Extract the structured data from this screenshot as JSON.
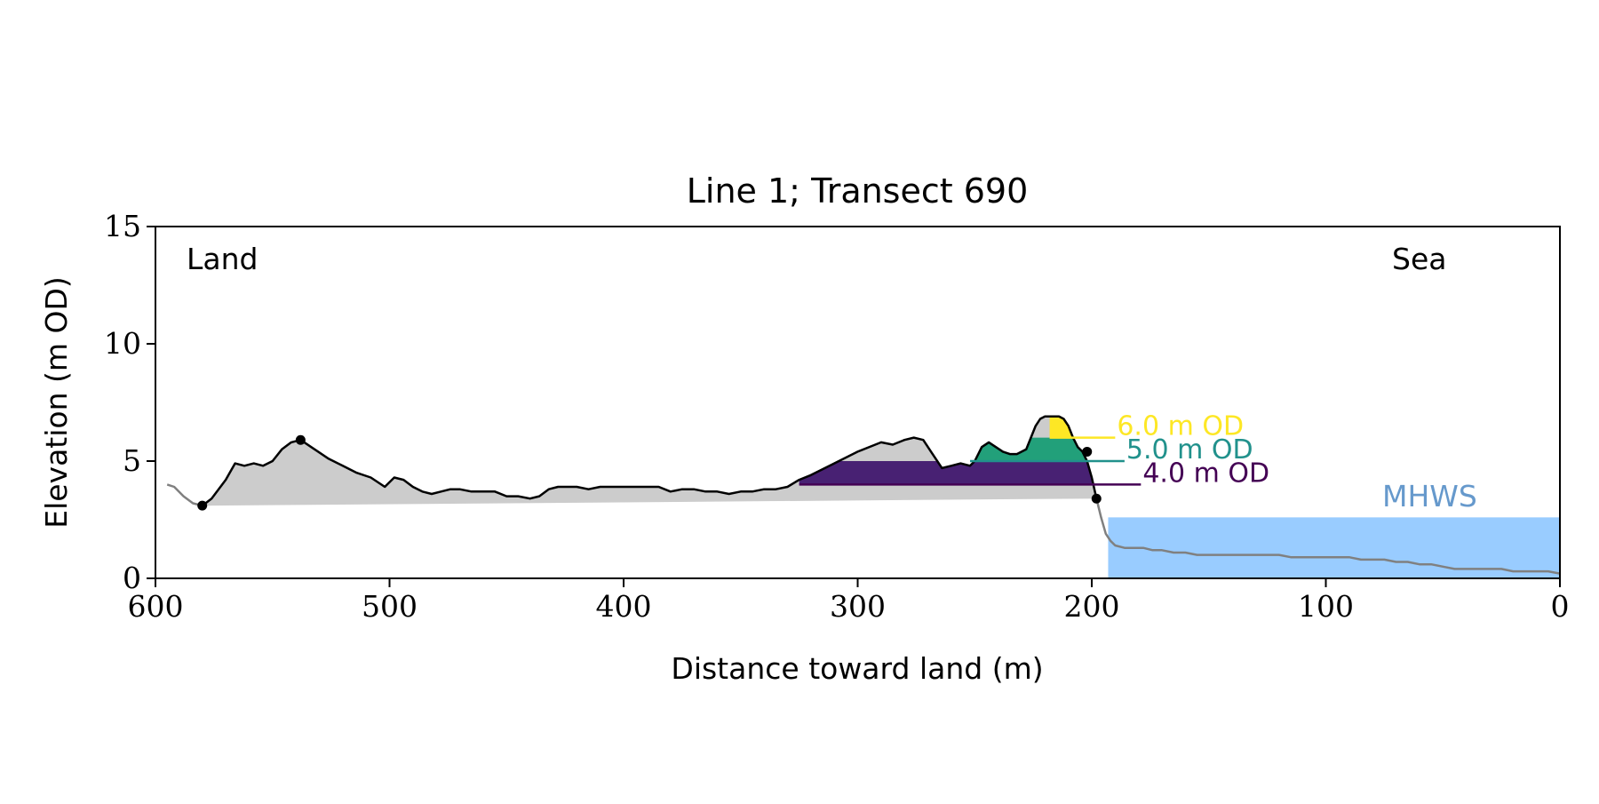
{
  "chart_data": {
    "type": "area",
    "title": "Line 1; Transect 690",
    "xlabel": "Distance toward land (m)",
    "ylabel": "Elevation (m OD)",
    "xlim": [
      600,
      0
    ],
    "ylim": [
      0,
      15
    ],
    "x_reversed": true,
    "xticks": [
      600,
      500,
      400,
      300,
      200,
      100,
      0
    ],
    "yticks": [
      0,
      5,
      10,
      15
    ],
    "grid": false,
    "corner_labels": {
      "left": "Land",
      "right": "Sea"
    },
    "colors": {
      "background_fill": "#cccccc",
      "profile_line": "#000000",
      "sea_line": "#808080",
      "mhws_fill": "#99ccff",
      "mhws_text": "#6699cc",
      "level_4": "#440154",
      "level_4_fill": "#482173",
      "level_5": "#21918c",
      "level_5_fill": "#22a07a",
      "level_6": "#fde725"
    },
    "mhws": {
      "label": "MHWS",
      "elevation": 2.6,
      "x_start": 193,
      "x_end": 0
    },
    "levels": [
      {
        "label": "6.0 m OD",
        "elevation": 6.0,
        "x_from": 218,
        "x_to": 190
      },
      {
        "label": "5.0 m OD",
        "elevation": 5.0,
        "x_from": 252,
        "x_to": 186
      },
      {
        "label": "4.0 m OD",
        "elevation": 4.0,
        "x_from": 325,
        "x_to": 179
      }
    ],
    "markers": [
      {
        "x": 580,
        "y": 3.1
      },
      {
        "x": 538,
        "y": 5.9
      },
      {
        "x": 202,
        "y": 5.4
      },
      {
        "x": 198,
        "y": 3.4
      }
    ],
    "baseline": {
      "x": [
        580,
        198
      ],
      "y": [
        3.1,
        3.4
      ]
    },
    "series": [
      {
        "x": [
          595,
          592,
          588,
          584,
          580
        ],
        "y": [
          4.0,
          3.9,
          3.5,
          3.2,
          3.1
        ]
      },
      {
        "x": [
          580,
          576,
          570,
          566,
          562,
          558,
          554,
          550,
          546,
          542,
          538,
          532,
          526,
          520,
          514,
          508,
          502,
          498,
          494,
          490,
          486,
          482,
          478,
          474,
          470,
          465,
          460,
          455,
          450,
          445,
          440,
          436,
          432,
          428,
          424,
          420,
          415,
          410,
          405,
          400,
          395,
          390,
          385,
          380,
          375,
          370,
          365,
          360,
          355,
          350,
          345,
          340,
          335,
          330,
          325,
          320,
          310,
          300,
          290,
          285,
          280,
          276,
          272,
          268,
          264,
          260,
          256,
          252,
          250,
          247,
          244,
          241,
          238,
          235,
          232,
          228,
          226,
          224,
          222,
          220,
          218,
          216,
          214,
          212,
          210,
          208,
          206,
          204,
          202,
          200,
          198
        ],
        "y": [
          3.1,
          3.4,
          4.2,
          4.9,
          4.8,
          4.9,
          4.8,
          5.0,
          5.5,
          5.8,
          5.9,
          5.5,
          5.1,
          4.8,
          4.5,
          4.3,
          3.9,
          4.3,
          4.2,
          3.9,
          3.7,
          3.6,
          3.7,
          3.8,
          3.8,
          3.7,
          3.7,
          3.7,
          3.5,
          3.5,
          3.4,
          3.5,
          3.8,
          3.9,
          3.9,
          3.9,
          3.8,
          3.9,
          3.9,
          3.9,
          3.9,
          3.9,
          3.9,
          3.7,
          3.8,
          3.8,
          3.7,
          3.7,
          3.6,
          3.7,
          3.7,
          3.8,
          3.8,
          3.9,
          4.2,
          4.4,
          4.9,
          5.4,
          5.8,
          5.7,
          5.9,
          6.0,
          5.9,
          5.3,
          4.7,
          4.8,
          4.9,
          4.8,
          5.0,
          5.6,
          5.8,
          5.6,
          5.4,
          5.3,
          5.3,
          5.5,
          6.0,
          6.5,
          6.8,
          6.9,
          6.9,
          6.9,
          6.9,
          6.8,
          6.5,
          6.0,
          5.6,
          5.4,
          5.0,
          4.3,
          3.4
        ]
      },
      {
        "x": [
          198,
          196,
          194,
          192,
          190,
          186,
          182,
          178,
          174,
          170,
          165,
          160,
          155,
          150,
          145,
          140,
          135,
          130,
          125,
          120,
          115,
          110,
          105,
          100,
          95,
          90,
          85,
          80,
          75,
          70,
          65,
          60,
          55,
          50,
          45,
          40,
          35,
          30,
          25,
          20,
          15,
          10,
          5,
          0
        ],
        "y": [
          3.4,
          2.6,
          1.9,
          1.6,
          1.4,
          1.3,
          1.3,
          1.3,
          1.2,
          1.2,
          1.1,
          1.1,
          1.0,
          1.0,
          1.0,
          1.0,
          1.0,
          1.0,
          1.0,
          1.0,
          0.9,
          0.9,
          0.9,
          0.9,
          0.9,
          0.9,
          0.8,
          0.8,
          0.8,
          0.7,
          0.7,
          0.6,
          0.6,
          0.5,
          0.4,
          0.4,
          0.4,
          0.4,
          0.4,
          0.3,
          0.3,
          0.3,
          0.3,
          0.2
        ]
      }
    ]
  }
}
